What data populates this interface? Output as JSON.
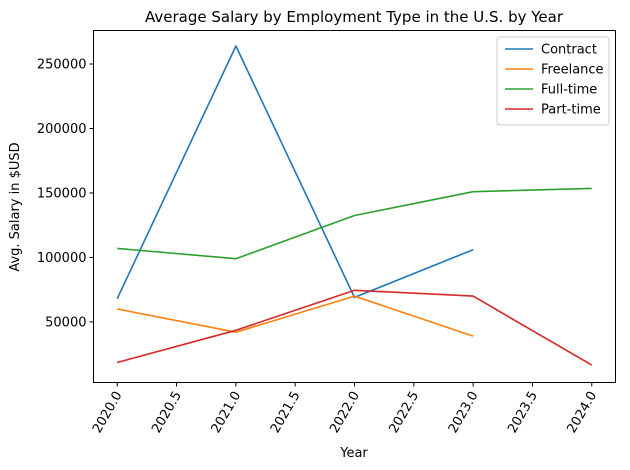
{
  "chart_data": {
    "type": "line",
    "title": "Average Salary by Employment Type in the U.S. by Year",
    "xlabel": "Year",
    "ylabel": "Avg. Salary in $USD",
    "xlim": [
      2019.8,
      2024.2
    ],
    "ylim": [
      3000,
      276000
    ],
    "xticks": [
      2020.0,
      2020.5,
      2021.0,
      2021.5,
      2022.0,
      2022.5,
      2023.0,
      2023.5,
      2024.0
    ],
    "xtick_labels": [
      "2020.0",
      "2020.5",
      "2021.0",
      "2021.5",
      "2022.0",
      "2022.5",
      "2023.0",
      "2023.5",
      "2024.0"
    ],
    "yticks": [
      50000,
      100000,
      150000,
      200000,
      250000
    ],
    "ytick_labels": [
      "50000",
      "100000",
      "150000",
      "200000",
      "250000"
    ],
    "grid": false,
    "legend_position": "top-right",
    "series": [
      {
        "name": "Contract",
        "color": "#1f77b4",
        "x": [
          2020,
          2021,
          2022,
          2023
        ],
        "y": [
          68000,
          264000,
          69000,
          106000
        ]
      },
      {
        "name": "Freelance",
        "color": "#ff7f0e",
        "x": [
          2020,
          2021,
          2022,
          2023
        ],
        "y": [
          60000,
          42000,
          70000,
          39000
        ]
      },
      {
        "name": "Full-time",
        "color": "#2ca02c",
        "x": [
          2020,
          2021,
          2022,
          2023,
          2024
        ],
        "y": [
          107000,
          99000,
          132500,
          151000,
          153500
        ]
      },
      {
        "name": "Part-time",
        "color": "#d62728",
        "x": [
          2020,
          2021,
          2022,
          2023,
          2024
        ],
        "y": [
          18500,
          43500,
          74500,
          70000,
          16500
        ]
      }
    ]
  }
}
